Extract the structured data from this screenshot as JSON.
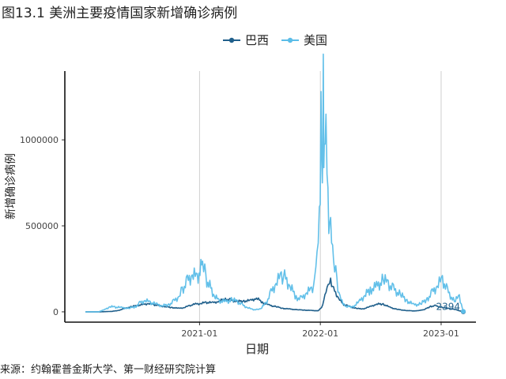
{
  "title": "图13.1 美洲主要疫情国家新增确诊病例",
  "source": "来源：约翰霍普金斯大学、第一财经研究院计算",
  "chart_data": {
    "type": "line",
    "xlabel": "日期",
    "ylabel": "新增确诊病例",
    "x_range": [
      "2020-01-22",
      "2023-03-09"
    ],
    "ylim": [
      -60000,
      1400000
    ],
    "y_ticks": [
      0,
      500000,
      1000000
    ],
    "y_tick_labels": [
      "0",
      "500000",
      "1000000"
    ],
    "x_ticks": [
      "2021-01-01",
      "2022-01-01",
      "2023-01-01"
    ],
    "x_tick_labels": [
      "2021-01",
      "2022-01",
      "2023-01"
    ],
    "grid": "vertical major only",
    "legend_position": "top",
    "annotation": {
      "text": "2394",
      "x": "2023-03-09",
      "y": 2394
    },
    "series": [
      {
        "name": "巴西",
        "color": "#1f5f8b",
        "points": [
          [
            "2020-01-22",
            0
          ],
          [
            "2020-03-01",
            0
          ],
          [
            "2020-03-20",
            900
          ],
          [
            "2020-04-10",
            2500
          ],
          [
            "2020-05-01",
            8000
          ],
          [
            "2020-05-20",
            20000
          ],
          [
            "2020-06-10",
            30000
          ],
          [
            "2020-06-28",
            38000
          ],
          [
            "2020-07-15",
            42000
          ],
          [
            "2020-07-30",
            48000
          ],
          [
            "2020-08-15",
            42000
          ],
          [
            "2020-09-01",
            36000
          ],
          [
            "2020-09-20",
            30000
          ],
          [
            "2020-10-10",
            25000
          ],
          [
            "2020-10-31",
            20000
          ],
          [
            "2020-11-15",
            24000
          ],
          [
            "2020-12-01",
            36000
          ],
          [
            "2020-12-20",
            45000
          ],
          [
            "2021-01-05",
            48000
          ],
          [
            "2021-01-20",
            55000
          ],
          [
            "2021-02-10",
            52000
          ],
          [
            "2021-03-01",
            62000
          ],
          [
            "2021-03-20",
            75000
          ],
          [
            "2021-04-05",
            68000
          ],
          [
            "2021-04-25",
            60000
          ],
          [
            "2021-05-15",
            63000
          ],
          [
            "2021-06-05",
            65000
          ],
          [
            "2021-06-22",
            80000
          ],
          [
            "2021-07-10",
            55000
          ],
          [
            "2021-07-31",
            38000
          ],
          [
            "2021-08-20",
            30000
          ],
          [
            "2021-09-10",
            20000
          ],
          [
            "2021-10-01",
            16000
          ],
          [
            "2021-10-25",
            12000
          ],
          [
            "2021-11-15",
            10000
          ],
          [
            "2021-12-05",
            8000
          ],
          [
            "2021-12-25",
            6000
          ],
          [
            "2022-01-05",
            25000
          ],
          [
            "2022-01-15",
            90000
          ],
          [
            "2022-01-25",
            160000
          ],
          [
            "2022-02-01",
            185000
          ],
          [
            "2022-02-10",
            130000
          ],
          [
            "2022-02-25",
            80000
          ],
          [
            "2022-03-10",
            45000
          ],
          [
            "2022-03-31",
            30000
          ],
          [
            "2022-04-20",
            20000
          ],
          [
            "2022-05-10",
            17000
          ],
          [
            "2022-06-01",
            30000
          ],
          [
            "2022-06-20",
            45000
          ],
          [
            "2022-07-10",
            45000
          ],
          [
            "2022-07-31",
            25000
          ],
          [
            "2022-08-20",
            15000
          ],
          [
            "2022-09-15",
            8000
          ],
          [
            "2022-10-15",
            5000
          ],
          [
            "2022-11-10",
            12000
          ],
          [
            "2022-11-30",
            32000
          ],
          [
            "2022-12-15",
            35000
          ],
          [
            "2023-01-05",
            25000
          ],
          [
            "2023-01-25",
            20000
          ],
          [
            "2023-02-15",
            12000
          ],
          [
            "2023-03-09",
            0
          ]
        ]
      },
      {
        "name": "美国",
        "color": "#5bbde8",
        "points": [
          [
            "2020-01-22",
            0
          ],
          [
            "2020-03-01",
            100
          ],
          [
            "2020-03-20",
            12000
          ],
          [
            "2020-04-05",
            30000
          ],
          [
            "2020-04-20",
            28000
          ],
          [
            "2020-05-10",
            24000
          ],
          [
            "2020-06-01",
            20000
          ],
          [
            "2020-06-20",
            30000
          ],
          [
            "2020-07-05",
            50000
          ],
          [
            "2020-07-20",
            66000
          ],
          [
            "2020-08-05",
            55000
          ],
          [
            "2020-08-25",
            42000
          ],
          [
            "2020-09-10",
            35000
          ],
          [
            "2020-09-30",
            42000
          ],
          [
            "2020-10-15",
            60000
          ],
          [
            "2020-10-31",
            90000
          ],
          [
            "2020-11-10",
            130000
          ],
          [
            "2020-11-25",
            175000
          ],
          [
            "2020-12-10",
            215000
          ],
          [
            "2020-12-25",
            200000
          ],
          [
            "2021-01-05",
            250000
          ],
          [
            "2021-01-10",
            295000
          ],
          [
            "2021-01-20",
            195000
          ],
          [
            "2021-02-01",
            150000
          ],
          [
            "2021-02-15",
            90000
          ],
          [
            "2021-03-01",
            65000
          ],
          [
            "2021-03-20",
            58000
          ],
          [
            "2021-04-10",
            70000
          ],
          [
            "2021-04-25",
            60000
          ],
          [
            "2021-05-10",
            40000
          ],
          [
            "2021-05-25",
            25000
          ],
          [
            "2021-06-10",
            14000
          ],
          [
            "2021-06-25",
            12000
          ],
          [
            "2021-07-05",
            18000
          ],
          [
            "2021-07-20",
            50000
          ],
          [
            "2021-08-05",
            110000
          ],
          [
            "2021-08-20",
            165000
          ],
          [
            "2021-09-05",
            210000
          ],
          [
            "2021-09-15",
            200000
          ],
          [
            "2021-10-01",
            150000
          ],
          [
            "2021-10-20",
            85000
          ],
          [
            "2021-11-05",
            75000
          ],
          [
            "2021-11-20",
            110000
          ],
          [
            "2021-12-05",
            130000
          ],
          [
            "2021-12-15",
            170000
          ],
          [
            "2021-12-22",
            350000
          ],
          [
            "2021-12-29",
            550000
          ],
          [
            "2022-01-03",
            1050000
          ],
          [
            "2022-01-07",
            750000
          ],
          [
            "2022-01-10",
            1350000
          ],
          [
            "2022-01-13",
            800000
          ],
          [
            "2022-01-18",
            1150000
          ],
          [
            "2022-01-24",
            650000
          ],
          [
            "2022-02-01",
            450000
          ],
          [
            "2022-02-10",
            300000
          ],
          [
            "2022-02-20",
            180000
          ],
          [
            "2022-03-01",
            80000
          ],
          [
            "2022-03-20",
            30000
          ],
          [
            "2022-04-10",
            30000
          ],
          [
            "2022-04-30",
            60000
          ],
          [
            "2022-05-15",
            95000
          ],
          [
            "2022-06-01",
            130000
          ],
          [
            "2022-06-20",
            145000
          ],
          [
            "2022-07-10",
            185000
          ],
          [
            "2022-07-25",
            165000
          ],
          [
            "2022-08-10",
            130000
          ],
          [
            "2022-08-31",
            100000
          ],
          [
            "2022-09-20",
            65000
          ],
          [
            "2022-10-10",
            40000
          ],
          [
            "2022-10-31",
            45000
          ],
          [
            "2022-11-20",
            75000
          ],
          [
            "2022-12-05",
            110000
          ],
          [
            "2022-12-20",
            150000
          ],
          [
            "2023-01-05",
            190000
          ],
          [
            "2023-01-20",
            120000
          ],
          [
            "2023-02-10",
            60000
          ],
          [
            "2023-02-25",
            90000
          ],
          [
            "2023-03-09",
            2394
          ]
        ]
      }
    ]
  }
}
